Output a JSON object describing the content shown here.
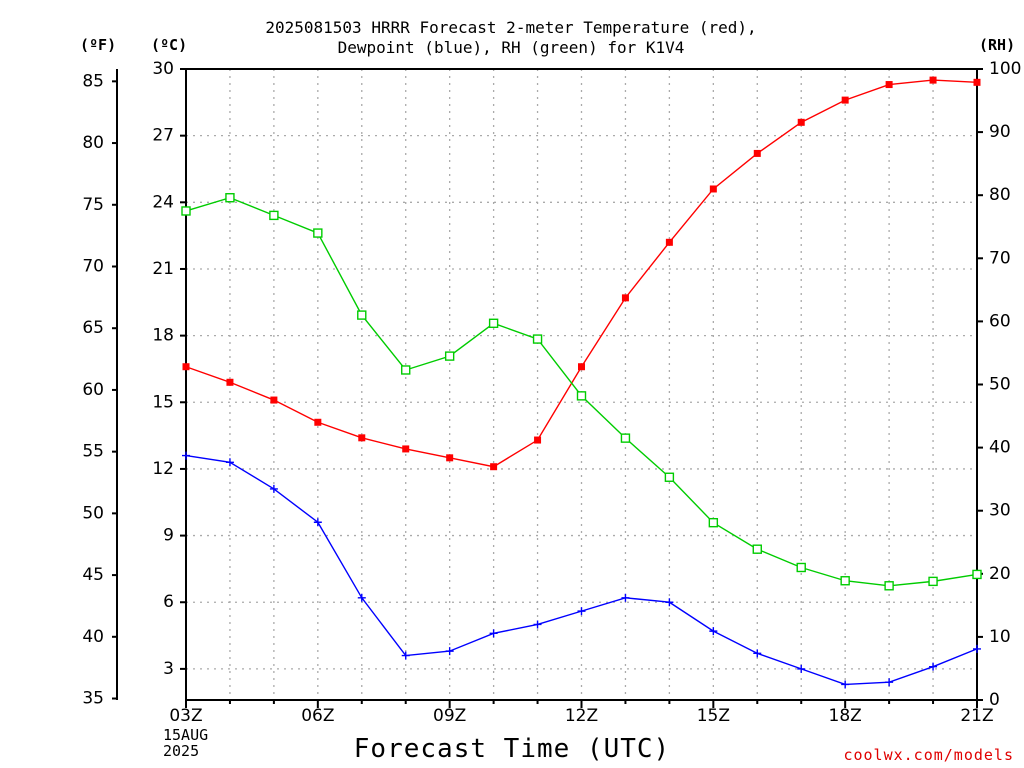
{
  "title_line1": "2025081503 HRRR Forecast 2-meter Temperature (red),",
  "title_line2": "Dewpoint (blue), RH (green) for K1V4",
  "unit_f": "(ºF)",
  "unit_c": "(ºC)",
  "unit_rh": "(RH)",
  "date_line1": "15AUG",
  "date_line2": "2025",
  "xlabel": "Forecast Time (UTC)",
  "credit": "coolwx.com/models",
  "chart_data": {
    "type": "line",
    "title": "2025081503 HRRR Forecast 2-meter Temperature (red), Dewpoint (blue), RH (green) for K1V4",
    "xlabel": "Forecast Time (UTC)",
    "x": [
      3,
      4,
      5,
      6,
      7,
      8,
      9,
      10,
      11,
      12,
      13,
      14,
      15,
      16,
      17,
      18,
      19,
      20,
      21
    ],
    "xlim": [
      3,
      21
    ],
    "x_ticks": [
      3,
      6,
      9,
      12,
      15,
      18,
      21
    ],
    "x_tick_labels": [
      "03Z",
      "06Z",
      "09Z",
      "12Z",
      "15Z",
      "18Z",
      "21Z"
    ],
    "left_axis_c": {
      "label": "(ºC)",
      "ylim": [
        1.6,
        30
      ],
      "ticks": [
        3,
        6,
        9,
        12,
        15,
        18,
        21,
        24,
        27,
        30
      ]
    },
    "left_axis_f": {
      "label": "(ºF)",
      "ticks": [
        35,
        40,
        45,
        50,
        55,
        60,
        65,
        70,
        75,
        80,
        85
      ]
    },
    "right_axis_rh": {
      "label": "(RH)",
      "ylim": [
        0,
        100
      ],
      "ticks": [
        0,
        10,
        20,
        30,
        40,
        50,
        60,
        70,
        80,
        90,
        100
      ]
    },
    "grid": true,
    "series": [
      {
        "name": "Temperature",
        "axis": "c",
        "color": "#ff0000",
        "marker": "filled-square",
        "values": [
          16.6,
          15.9,
          15.1,
          14.1,
          13.4,
          12.9,
          12.5,
          12.1,
          13.3,
          16.6,
          19.7,
          22.2,
          24.6,
          26.2,
          27.6,
          28.6,
          29.3,
          29.5,
          29.4
        ]
      },
      {
        "name": "Dewpoint",
        "axis": "c",
        "color": "#0000ff",
        "marker": "plus",
        "values": [
          12.6,
          12.3,
          11.1,
          9.6,
          6.2,
          3.6,
          3.8,
          4.6,
          5.0,
          5.6,
          6.2,
          6.0,
          4.7,
          3.7,
          3.0,
          2.3,
          2.4,
          3.1,
          3.9
        ]
      },
      {
        "name": "RH",
        "axis": "rh",
        "color": "#00cc00",
        "marker": "open-square",
        "values": [
          77.5,
          79.6,
          76.8,
          74.0,
          61.0,
          52.3,
          54.5,
          59.7,
          57.2,
          48.2,
          41.5,
          35.3,
          28.1,
          23.9,
          21.0,
          18.9,
          18.1,
          18.8,
          19.9
        ]
      }
    ]
  }
}
